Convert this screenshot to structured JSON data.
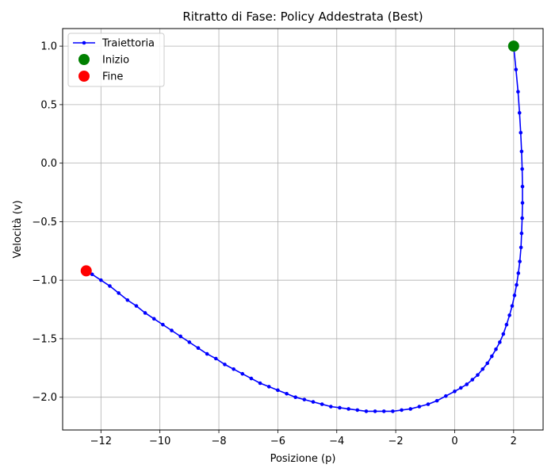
{
  "chart_data": {
    "type": "line",
    "title": "Ritratto di Fase: Policy Addestrata (Best)",
    "xlabel": "Posizione (p)",
    "ylabel": "Velocità (v)",
    "xlim": [
      -13.3,
      3.0
    ],
    "ylim": [
      -2.28,
      1.15
    ],
    "xticks": [
      -12,
      -10,
      -8,
      -6,
      -4,
      -2,
      0,
      2
    ],
    "yticks": [
      -2.0,
      -1.5,
      -1.0,
      -0.5,
      0.0,
      0.5,
      1.0
    ],
    "grid": true,
    "legend_position": "top-left",
    "series": [
      {
        "name": "Traiettoria",
        "color": "#0000ff",
        "marker": "dot",
        "x": [
          2.0,
          2.08,
          2.15,
          2.2,
          2.24,
          2.27,
          2.29,
          2.3,
          2.3,
          2.29,
          2.27,
          2.25,
          2.21,
          2.16,
          2.1,
          2.03,
          1.95,
          1.86,
          1.76,
          1.65,
          1.53,
          1.4,
          1.26,
          1.11,
          0.95,
          0.78,
          0.6,
          0.41,
          0.21,
          0.0,
          -0.3,
          -0.6,
          -0.9,
          -1.2,
          -1.5,
          -1.8,
          -2.1,
          -2.4,
          -2.7,
          -3.0,
          -3.3,
          -3.6,
          -3.9,
          -4.2,
          -4.5,
          -4.8,
          -5.1,
          -5.4,
          -5.7,
          -6.0,
          -6.3,
          -6.6,
          -6.9,
          -7.2,
          -7.5,
          -7.8,
          -8.1,
          -8.4,
          -8.7,
          -9.0,
          -9.3,
          -9.6,
          -9.9,
          -10.2,
          -10.5,
          -10.8,
          -11.1,
          -11.4,
          -11.7,
          -12.0,
          -12.3,
          -12.5
        ],
        "y": [
          1.0,
          0.8,
          0.61,
          0.43,
          0.26,
          0.1,
          -0.05,
          -0.2,
          -0.34,
          -0.47,
          -0.6,
          -0.72,
          -0.84,
          -0.94,
          -1.04,
          -1.13,
          -1.22,
          -1.3,
          -1.38,
          -1.46,
          -1.53,
          -1.59,
          -1.65,
          -1.71,
          -1.76,
          -1.81,
          -1.85,
          -1.89,
          -1.92,
          -1.95,
          -1.99,
          -2.03,
          -2.06,
          -2.08,
          -2.1,
          -2.11,
          -2.12,
          -2.12,
          -2.12,
          -2.12,
          -2.11,
          -2.1,
          -2.09,
          -2.08,
          -2.06,
          -2.04,
          -2.02,
          -2.0,
          -1.97,
          -1.94,
          -1.91,
          -1.88,
          -1.84,
          -1.8,
          -1.76,
          -1.72,
          -1.67,
          -1.63,
          -1.58,
          -1.53,
          -1.48,
          -1.43,
          -1.38,
          -1.33,
          -1.28,
          -1.22,
          -1.17,
          -1.11,
          -1.05,
          -1.0,
          -0.95,
          -0.92
        ]
      },
      {
        "name": "Inizio",
        "color": "#008000",
        "marker": "large-dot",
        "x": [
          2.0
        ],
        "y": [
          1.0
        ]
      },
      {
        "name": "Fine",
        "color": "#ff0000",
        "marker": "large-dot",
        "x": [
          -12.5
        ],
        "y": [
          -0.92
        ]
      }
    ]
  }
}
